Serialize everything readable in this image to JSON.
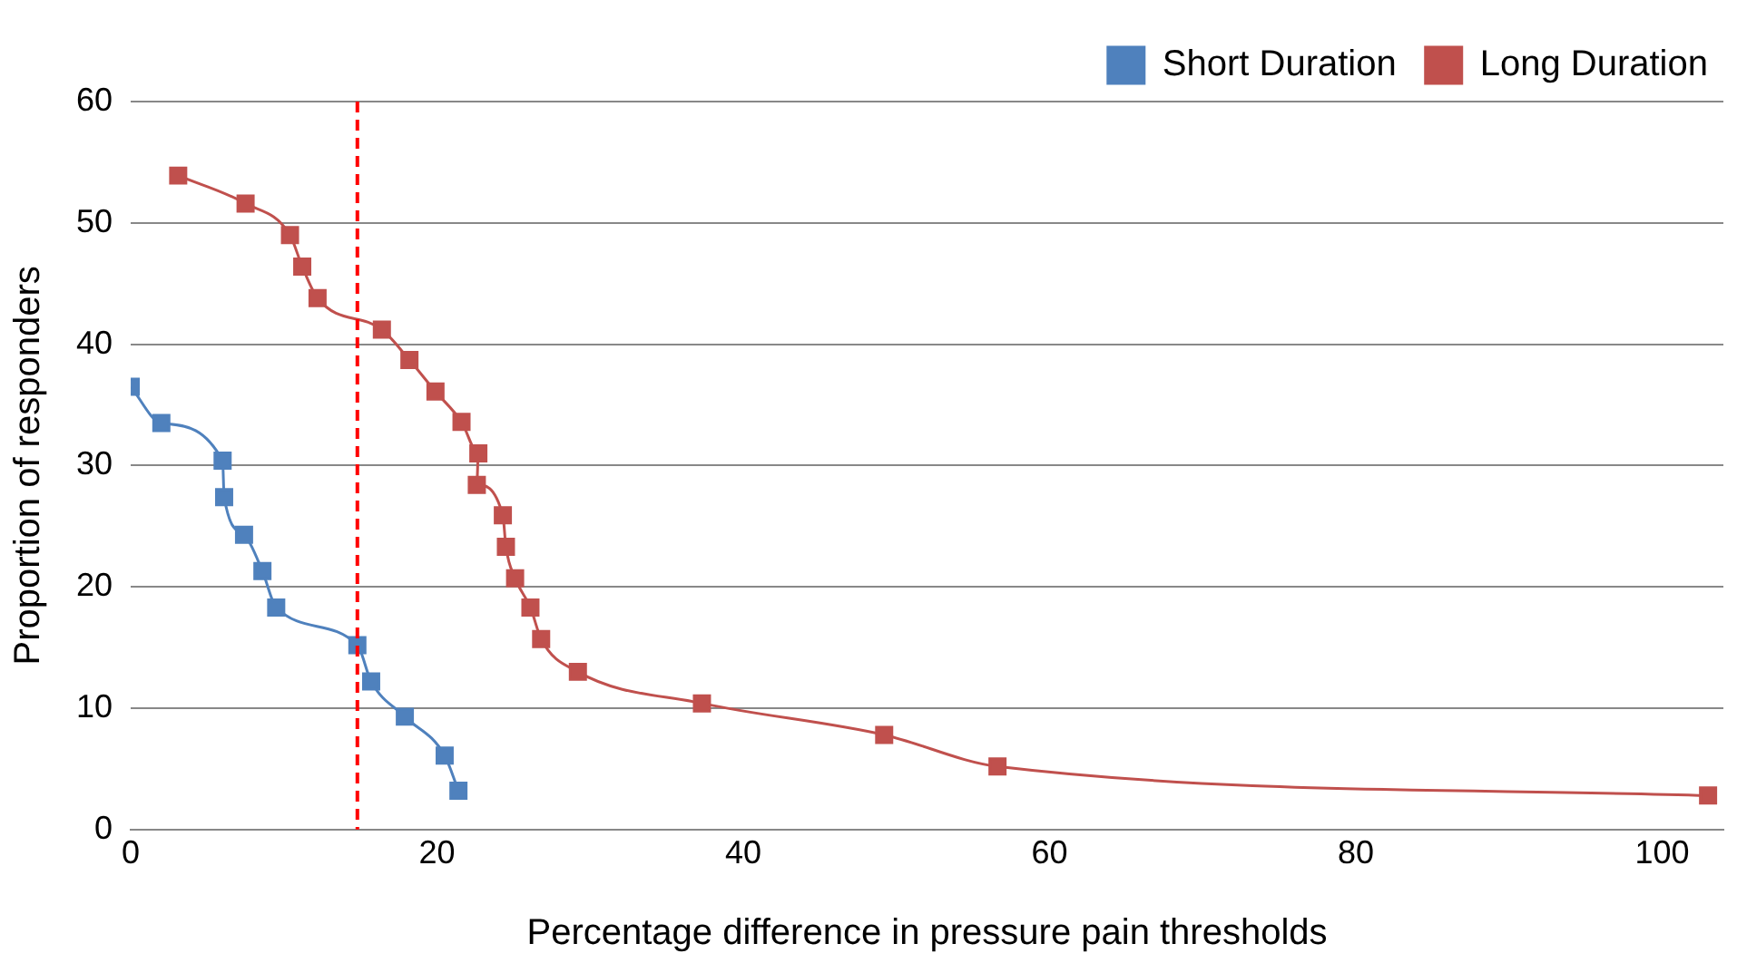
{
  "chart_data": {
    "type": "line",
    "xlabel": "Percentage difference in pressure pain thresholds",
    "ylabel": "Proportion of responders",
    "xlim": [
      0,
      104
    ],
    "xticks": [
      0,
      20,
      40,
      60,
      80,
      100
    ],
    "ylim": [
      0,
      60
    ],
    "yticks": [
      0,
      10,
      20,
      30,
      40,
      50,
      60
    ],
    "grid": "y",
    "legend": "top right",
    "marker": "square",
    "line_style": "solid",
    "series": [
      {
        "name": "Short Duration",
        "color": "#4f81bd",
        "x": [
          0,
          2,
          6,
          6.1,
          7.4,
          8.6,
          9.5,
          14.8,
          15.7,
          17.9,
          20.5,
          21.4
        ],
        "values": [
          36.5,
          33.5,
          30.4,
          27.4,
          24.3,
          21.3,
          18.3,
          15.2,
          12.2,
          9.3,
          6.1,
          3.2
        ]
      },
      {
        "name": "Long Duration",
        "color": "#c0504d",
        "x": [
          3.1,
          7.5,
          10.4,
          11.2,
          12.2,
          16.4,
          18.2,
          19.9,
          21.6,
          22.7,
          22.6,
          24.3,
          24.5,
          25.1,
          26.1,
          26.8,
          29.2,
          37.3,
          49.2,
          56.6,
          103
        ],
        "values": [
          53.9,
          51.6,
          49,
          46.4,
          43.8,
          41.2,
          38.7,
          36.1,
          33.6,
          31,
          28.4,
          25.9,
          23.3,
          20.7,
          18.3,
          15.7,
          13,
          10.4,
          7.8,
          5.2,
          2.8
        ]
      }
    ],
    "ref_lines": [
      {
        "axis": "x",
        "value": 14.8,
        "color": "#ff0000",
        "line_style": "dashed"
      }
    ]
  }
}
